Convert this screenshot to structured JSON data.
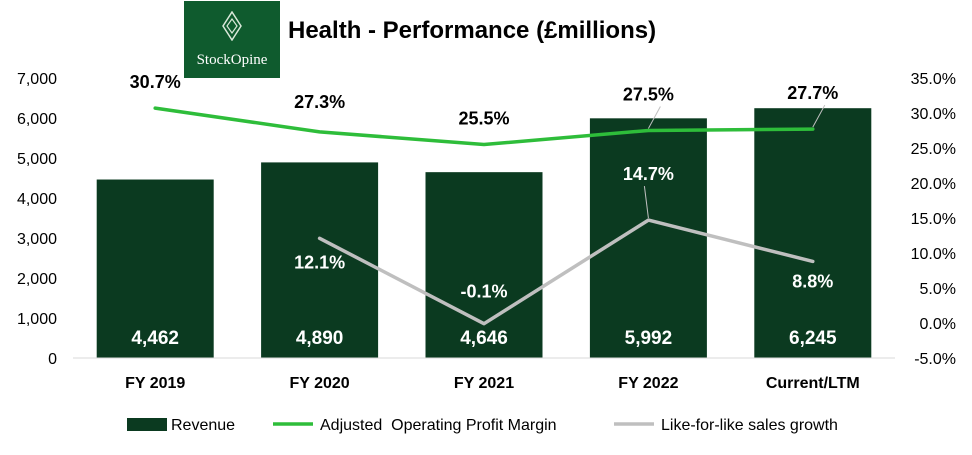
{
  "header": {
    "logo_text": "StockOpine",
    "title": "Health - Performance (£millions)"
  },
  "chart_data": {
    "type": "bar",
    "title": "Health - Performance (£millions)",
    "categories": [
      "FY 2019",
      "FY 2020",
      "FY 2021",
      "FY 2022",
      "Current/LTM"
    ],
    "left_axis": {
      "ylim": [
        0,
        7000
      ],
      "ticks": [
        0,
        1000,
        2000,
        3000,
        4000,
        5000,
        6000,
        7000
      ],
      "tick_labels": [
        "0",
        "1,000",
        "2,000",
        "3,000",
        "4,000",
        "5,000",
        "6,000",
        "7,000"
      ]
    },
    "right_axis": {
      "ylim": [
        -5,
        35
      ],
      "ticks": [
        -5,
        0,
        5,
        10,
        15,
        20,
        25,
        30,
        35
      ],
      "tick_labels": [
        "-5.0%",
        "0.0%",
        "5.0%",
        "10.0%",
        "15.0%",
        "20.0%",
        "25.0%",
        "30.0%",
        "35.0%"
      ]
    },
    "series": [
      {
        "name": "Revenue",
        "type": "bar",
        "axis": "left",
        "color": "#0b3a20",
        "values": [
          4462,
          4890,
          4646,
          5992,
          6245
        ],
        "labels": [
          "4,462",
          "4,890",
          "4,646",
          "5,992",
          "6,245"
        ]
      },
      {
        "name": "Adjusted  Operating Profit Margin",
        "type": "line",
        "axis": "right",
        "color": "#2ebd3a",
        "values": [
          30.7,
          27.3,
          25.5,
          27.5,
          27.7
        ],
        "labels": [
          "30.7%",
          "27.3%",
          "25.5%",
          "27.5%",
          "27.7%"
        ]
      },
      {
        "name": "Like-for-like sales growth",
        "type": "line",
        "axis": "right",
        "color": "#bfbfbf",
        "values": [
          null,
          12.1,
          -0.1,
          14.7,
          8.8
        ],
        "labels": [
          "",
          "12.1%",
          "-0.1%",
          "14.7%",
          "8.8%"
        ]
      }
    ],
    "grid": false,
    "legend_position": "bottom"
  }
}
